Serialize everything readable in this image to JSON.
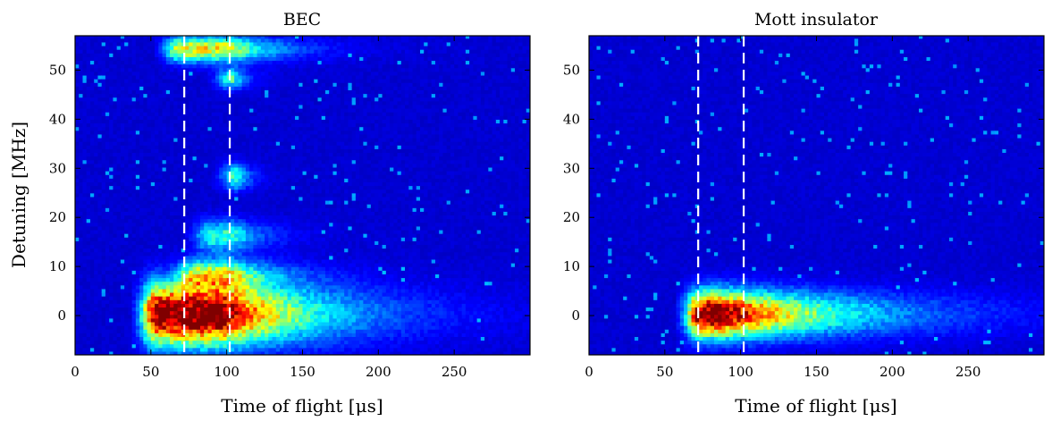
{
  "figure": {
    "ylabel": "Detuning [MHz]"
  },
  "colormap": {
    "name": "jet",
    "stops": [
      "#00007f",
      "#0000ff",
      "#00ffff",
      "#ffff00",
      "#ff0000",
      "#7f0000"
    ]
  },
  "chart_data": [
    {
      "type": "heatmap",
      "title": "BEC",
      "xlabel": "Time of flight [μs]",
      "ylabel": "Detuning [MHz]",
      "xlim": [
        0,
        300
      ],
      "ylim": [
        -8,
        57
      ],
      "xticks": [
        0,
        50,
        100,
        150,
        200,
        250
      ],
      "yticks": [
        0,
        10,
        20,
        30,
        40,
        50
      ],
      "xtick_labels": [
        "0",
        "50",
        "100",
        "150",
        "200",
        "250"
      ],
      "ytick_labels": [
        "0",
        "10",
        "20",
        "30",
        "40",
        "50"
      ],
      "colorscale": "jet",
      "background_intensity": 0.08,
      "dashed_lines_x": [
        72,
        102
      ],
      "features": [
        {
          "x_start": 45,
          "x_peak": 95,
          "x_decay": 55,
          "y_center": 0,
          "y_halfwidth": 6,
          "peak_intensity": 1.0
        },
        {
          "x_start": 60,
          "x_peak": 100,
          "x_decay": 30,
          "y_center": 54,
          "y_halfwidth": 2.5,
          "peak_intensity": 0.55
        },
        {
          "x_start": 95,
          "x_peak": 103,
          "x_decay": 8,
          "y_center": 48,
          "y_halfwidth": 2,
          "peak_intensity": 0.4
        },
        {
          "x_start": 98,
          "x_peak": 105,
          "x_decay": 8,
          "y_center": 28,
          "y_halfwidth": 2.5,
          "peak_intensity": 0.4
        },
        {
          "x_start": 80,
          "x_peak": 102,
          "x_decay": 20,
          "y_center": 16,
          "y_halfwidth": 3,
          "peak_intensity": 0.35
        },
        {
          "x_start": 70,
          "x_peak": 102,
          "x_decay": 25,
          "y_center": 8,
          "y_halfwidth": 3,
          "peak_intensity": 0.45
        }
      ]
    },
    {
      "type": "heatmap",
      "title": "Mott insulator",
      "xlabel": "Time of flight [μs]",
      "ylabel": "",
      "xlim": [
        0,
        300
      ],
      "ylim": [
        -8,
        57
      ],
      "xticks": [
        0,
        50,
        100,
        150,
        200,
        250
      ],
      "yticks": [
        0,
        10,
        20,
        30,
        40,
        50
      ],
      "xtick_labels": [
        "0",
        "50",
        "100",
        "150",
        "200",
        "250"
      ],
      "ytick_labels": [
        "0",
        "10",
        "20",
        "30",
        "40",
        "50"
      ],
      "colorscale": "jet",
      "background_intensity": 0.08,
      "dashed_lines_x": [
        72,
        102
      ],
      "features": [
        {
          "x_start": 65,
          "x_peak": 85,
          "x_decay": 70,
          "y_center": 0,
          "y_halfwidth": 4.5,
          "peak_intensity": 1.0
        }
      ]
    }
  ]
}
